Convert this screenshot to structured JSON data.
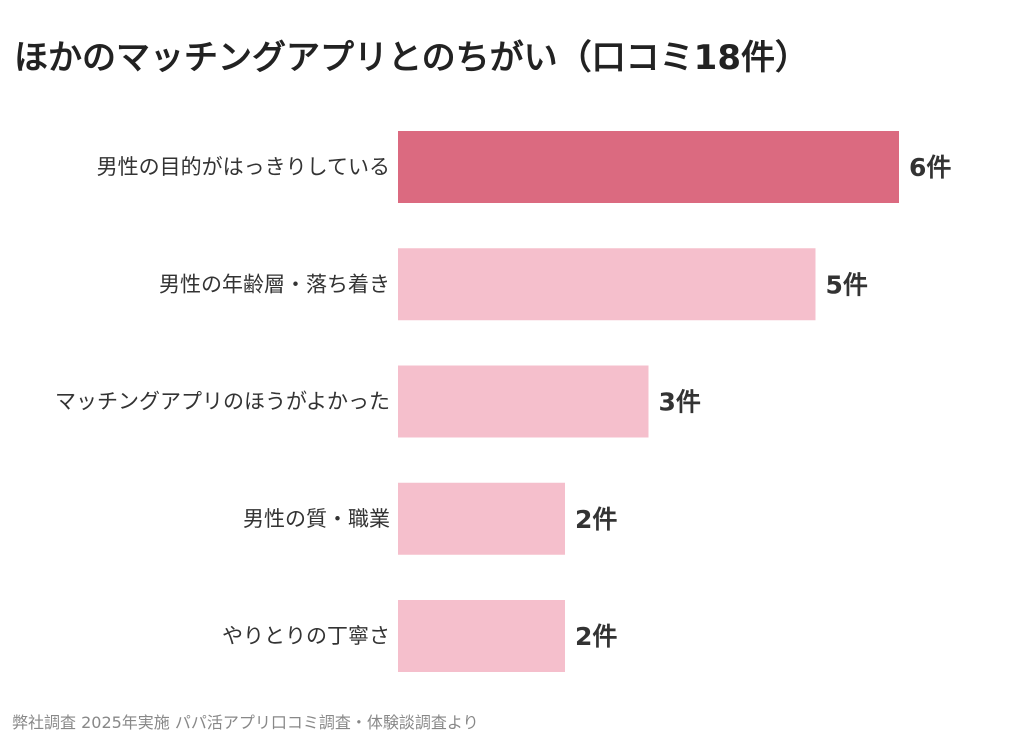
{
  "title": "ほかのマッチングアプリとのちがい（口コミ18件）",
  "source": "弊社調査 2025年実施 パパ活アプリ口コミ調査・体験談調査より",
  "colors": {
    "highlight": "#db6a80",
    "bar": "#f5bfcc",
    "text": "#333333"
  },
  "chart_data": {
    "type": "bar",
    "orientation": "horizontal",
    "title": "ほかのマッチングアプリとのちがい（口コミ18件）",
    "categories": [
      "男性の目的がはっきりしている",
      "男性の年齢層・落ち着き",
      "マッチングアプリのほうがよかった",
      "男性の質・職業",
      "やりとりの丁寧さ"
    ],
    "values": [
      6,
      5,
      3,
      2,
      2
    ],
    "value_labels": [
      "6件",
      "5件",
      "3件",
      "2件",
      "2件"
    ],
    "unit": "件",
    "highlight_index": 0,
    "xlim": [
      0,
      6
    ],
    "grid": false,
    "legend": "none"
  }
}
